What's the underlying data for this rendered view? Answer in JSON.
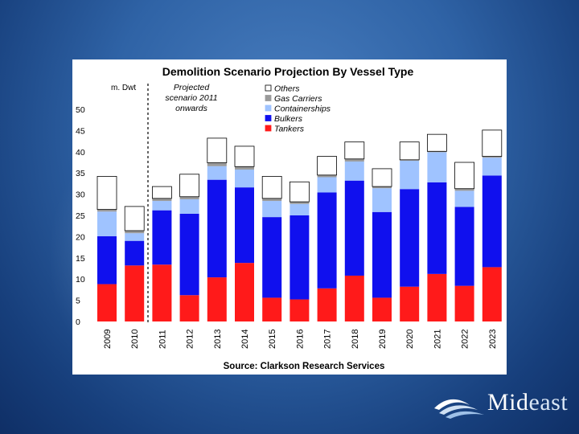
{
  "chart_data": {
    "type": "stacked-bar",
    "title": "Demolition Scenario Projection By Vessel Type",
    "unit_label": "m. Dwt",
    "annotation": [
      "Projected",
      "scenario 2011",
      "onwards"
    ],
    "source": "Source: Clarkson Research Services",
    "ylim": [
      0,
      50
    ],
    "y_ticks": [
      0,
      5,
      10,
      15,
      20,
      25,
      30,
      35,
      40,
      45,
      50
    ],
    "categories": [
      "2009",
      "2010",
      "2011",
      "2012",
      "2013",
      "2014",
      "2015",
      "2016",
      "2017",
      "2018",
      "2019",
      "2020",
      "2021",
      "2022",
      "2023"
    ],
    "series": [
      {
        "name": "Tankers",
        "color": "#ff1a1a",
        "values": [
          8.8,
          13.2,
          13.4,
          6.2,
          10.4,
          13.8,
          5.6,
          5.2,
          7.8,
          10.8,
          5.6,
          8.2,
          11.2,
          8.4,
          12.8
        ]
      },
      {
        "name": "Bulkers",
        "color": "#1010ee",
        "values": [
          11.3,
          5.8,
          12.8,
          19.2,
          23.0,
          17.8,
          19.0,
          19.8,
          22.6,
          22.4,
          20.2,
          23.0,
          21.6,
          18.6,
          21.6
        ]
      },
      {
        "name": "Containerships",
        "color": "#9fc3ff",
        "values": [
          5.8,
          1.8,
          2.2,
          3.4,
          3.2,
          4.2,
          3.8,
          2.7,
          3.6,
          4.5,
          5.6,
          6.7,
          7.1,
          3.8,
          4.2
        ]
      },
      {
        "name": "Gas Carriers",
        "color": "#9a9a9a",
        "values": [
          0.5,
          0.6,
          0.6,
          0.6,
          0.8,
          0.7,
          0.6,
          0.5,
          0.5,
          0.6,
          0.4,
          0.2,
          0.2,
          0.5,
          0.3
        ]
      },
      {
        "name": "Others",
        "color": "#ffffff",
        "values": [
          7.8,
          5.7,
          2.8,
          5.3,
          5.8,
          4.8,
          5.2,
          4.7,
          4.4,
          4.0,
          4.2,
          4.2,
          4.0,
          6.2,
          6.2
        ]
      }
    ],
    "legend_order": [
      "Others",
      "Gas Carriers",
      "Containerships",
      "Bulkers",
      "Tankers"
    ]
  },
  "logo": {
    "name_main": "Mid",
    "name_accent": "east"
  }
}
